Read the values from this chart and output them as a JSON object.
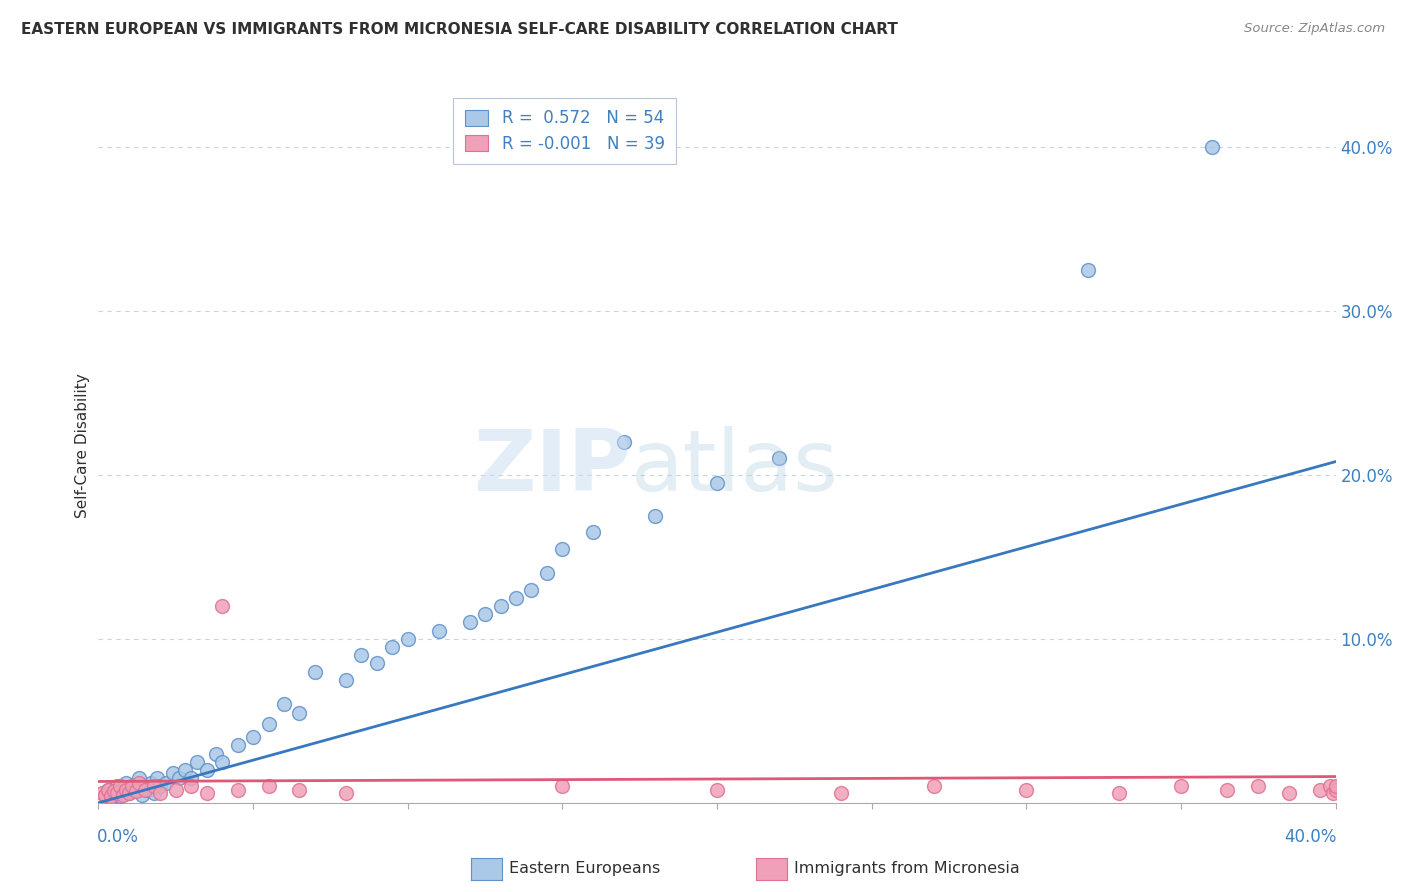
{
  "title": "EASTERN EUROPEAN VS IMMIGRANTS FROM MICRONESIA SELF-CARE DISABILITY CORRELATION CHART",
  "source": "Source: ZipAtlas.com",
  "ylabel": "Self-Care Disability",
  "xlim": [
    0.0,
    0.4
  ],
  "ylim": [
    0.0,
    0.435
  ],
  "yticks": [
    0.0,
    0.1,
    0.2,
    0.3,
    0.4
  ],
  "ytick_labels": [
    "",
    "10.0%",
    "20.0%",
    "30.0%",
    "40.0%"
  ],
  "blue_color": "#aac8e8",
  "pink_color": "#f0a0b8",
  "blue_edge_color": "#6090c8",
  "pink_edge_color": "#e07090",
  "blue_line_color": "#3878c0",
  "pink_line_color": "#e05878",
  "grid_color": "#c8d4e4",
  "background_color": "#ffffff",
  "title_color": "#303030",
  "source_color": "#888888",
  "axis_label_color": "#4080c0",
  "legend_R1": "R =  0.572",
  "legend_N1": "N = 54",
  "legend_R2": "R = -0.001",
  "legend_N2": "N = 39",
  "legend_label1": "Eastern Europeans",
  "legend_label2": "Immigrants from Micronesia",
  "blue_x": [
    0.002,
    0.003,
    0.004,
    0.005,
    0.006,
    0.007,
    0.008,
    0.009,
    0.01,
    0.011,
    0.012,
    0.013,
    0.014,
    0.015,
    0.016,
    0.017,
    0.018,
    0.019,
    0.02,
    0.022,
    0.024,
    0.026,
    0.028,
    0.03,
    0.032,
    0.035,
    0.038,
    0.04,
    0.045,
    0.05,
    0.055,
    0.06,
    0.065,
    0.07,
    0.08,
    0.085,
    0.09,
    0.095,
    0.1,
    0.11,
    0.12,
    0.125,
    0.13,
    0.135,
    0.14,
    0.145,
    0.15,
    0.16,
    0.17,
    0.18,
    0.2,
    0.22,
    0.32,
    0.36
  ],
  "blue_y": [
    0.005,
    0.008,
    0.003,
    0.006,
    0.01,
    0.004,
    0.008,
    0.012,
    0.006,
    0.01,
    0.008,
    0.015,
    0.005,
    0.01,
    0.008,
    0.012,
    0.006,
    0.015,
    0.01,
    0.012,
    0.018,
    0.015,
    0.02,
    0.015,
    0.025,
    0.02,
    0.03,
    0.025,
    0.035,
    0.04,
    0.048,
    0.06,
    0.055,
    0.08,
    0.075,
    0.09,
    0.085,
    0.095,
    0.1,
    0.105,
    0.11,
    0.115,
    0.12,
    0.125,
    0.13,
    0.14,
    0.155,
    0.165,
    0.22,
    0.175,
    0.195,
    0.21,
    0.325,
    0.4
  ],
  "pink_x": [
    0.001,
    0.002,
    0.003,
    0.004,
    0.005,
    0.006,
    0.007,
    0.008,
    0.009,
    0.01,
    0.011,
    0.012,
    0.013,
    0.015,
    0.018,
    0.02,
    0.025,
    0.03,
    0.035,
    0.04,
    0.045,
    0.055,
    0.065,
    0.08,
    0.15,
    0.2,
    0.24,
    0.27,
    0.3,
    0.33,
    0.35,
    0.365,
    0.375,
    0.385,
    0.395,
    0.398,
    0.399,
    0.4,
    0.4
  ],
  "pink_y": [
    0.006,
    0.005,
    0.008,
    0.004,
    0.007,
    0.006,
    0.01,
    0.005,
    0.008,
    0.006,
    0.01,
    0.007,
    0.012,
    0.008,
    0.01,
    0.006,
    0.008,
    0.01,
    0.006,
    0.12,
    0.008,
    0.01,
    0.008,
    0.006,
    0.01,
    0.008,
    0.006,
    0.01,
    0.008,
    0.006,
    0.01,
    0.008,
    0.01,
    0.006,
    0.008,
    0.01,
    0.006,
    0.008,
    0.01
  ]
}
